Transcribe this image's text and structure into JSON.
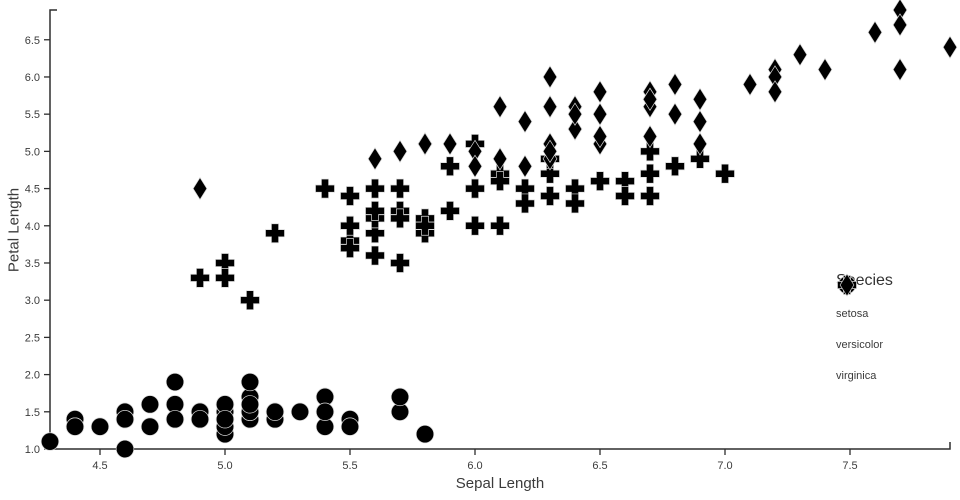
{
  "figure": {
    "background": "#ffffff",
    "marker_color": "#000000",
    "axis_color": "#2e2e2e",
    "text_color": "#3b3b3b"
  },
  "chart_data": {
    "type": "scatter",
    "title": "",
    "xlabel": "Sepal Length",
    "ylabel": "Petal Length",
    "xlim": [
      4.3,
      7.9
    ],
    "ylim": [
      1.0,
      6.9
    ],
    "x_ticks": [
      4.5,
      5.0,
      5.5,
      6.0,
      6.5,
      7.0,
      7.5
    ],
    "y_ticks": [
      1.0,
      1.5,
      2.0,
      2.5,
      3.0,
      3.5,
      4.0,
      4.5,
      5.0,
      5.5,
      6.0,
      6.5
    ],
    "grid": false,
    "legend_title": "Species",
    "legend_position": "right",
    "series": [
      {
        "name": "setosa",
        "marker": "circle",
        "color": "#000000",
        "points": [
          [
            5.1,
            1.4
          ],
          [
            4.9,
            1.4
          ],
          [
            4.7,
            1.3
          ],
          [
            4.6,
            1.5
          ],
          [
            5.0,
            1.4
          ],
          [
            5.4,
            1.7
          ],
          [
            4.6,
            1.4
          ],
          [
            5.0,
            1.5
          ],
          [
            4.4,
            1.4
          ],
          [
            4.9,
            1.5
          ],
          [
            5.4,
            1.5
          ],
          [
            4.8,
            1.6
          ],
          [
            4.8,
            1.4
          ],
          [
            4.3,
            1.1
          ],
          [
            5.8,
            1.2
          ],
          [
            5.7,
            1.5
          ],
          [
            5.4,
            1.3
          ],
          [
            5.1,
            1.4
          ],
          [
            5.7,
            1.7
          ],
          [
            5.1,
            1.5
          ],
          [
            5.4,
            1.7
          ],
          [
            5.1,
            1.5
          ],
          [
            4.6,
            1.0
          ],
          [
            5.1,
            1.7
          ],
          [
            4.8,
            1.9
          ],
          [
            5.0,
            1.6
          ],
          [
            5.0,
            1.6
          ],
          [
            5.2,
            1.5
          ],
          [
            5.2,
            1.4
          ],
          [
            4.7,
            1.6
          ],
          [
            4.8,
            1.6
          ],
          [
            5.4,
            1.5
          ],
          [
            5.2,
            1.5
          ],
          [
            5.5,
            1.4
          ],
          [
            4.9,
            1.5
          ],
          [
            5.0,
            1.2
          ],
          [
            5.5,
            1.3
          ],
          [
            4.9,
            1.4
          ],
          [
            4.4,
            1.3
          ],
          [
            5.1,
            1.5
          ],
          [
            5.0,
            1.3
          ],
          [
            4.5,
            1.3
          ],
          [
            4.4,
            1.3
          ],
          [
            5.0,
            1.6
          ],
          [
            5.1,
            1.9
          ],
          [
            4.8,
            1.4
          ],
          [
            5.1,
            1.6
          ],
          [
            4.6,
            1.4
          ],
          [
            5.3,
            1.5
          ],
          [
            5.0,
            1.4
          ]
        ]
      },
      {
        "name": "versicolor",
        "marker": "plus",
        "color": "#000000",
        "points": [
          [
            7.0,
            4.7
          ],
          [
            6.4,
            4.5
          ],
          [
            6.9,
            4.9
          ],
          [
            5.5,
            4.0
          ],
          [
            6.5,
            4.6
          ],
          [
            5.7,
            4.5
          ],
          [
            6.3,
            4.7
          ],
          [
            4.9,
            3.3
          ],
          [
            6.6,
            4.6
          ],
          [
            5.2,
            3.9
          ],
          [
            5.0,
            3.5
          ],
          [
            5.9,
            4.2
          ],
          [
            6.0,
            4.0
          ],
          [
            6.1,
            4.7
          ],
          [
            5.6,
            3.6
          ],
          [
            6.7,
            4.4
          ],
          [
            5.6,
            4.5
          ],
          [
            5.8,
            4.1
          ],
          [
            6.2,
            4.5
          ],
          [
            5.6,
            3.9
          ],
          [
            5.9,
            4.8
          ],
          [
            6.1,
            4.0
          ],
          [
            6.3,
            4.9
          ],
          [
            6.1,
            4.7
          ],
          [
            6.4,
            4.3
          ],
          [
            6.6,
            4.4
          ],
          [
            6.8,
            4.8
          ],
          [
            6.7,
            5.0
          ],
          [
            6.0,
            4.5
          ],
          [
            5.7,
            3.5
          ],
          [
            5.5,
            3.8
          ],
          [
            5.5,
            3.7
          ],
          [
            5.8,
            3.9
          ],
          [
            6.0,
            5.1
          ],
          [
            5.4,
            4.5
          ],
          [
            6.0,
            4.5
          ],
          [
            6.7,
            4.7
          ],
          [
            6.3,
            4.4
          ],
          [
            5.6,
            4.1
          ],
          [
            5.5,
            4.0
          ],
          [
            5.5,
            4.4
          ],
          [
            6.1,
            4.6
          ],
          [
            5.8,
            4.0
          ],
          [
            5.0,
            3.3
          ],
          [
            5.6,
            4.2
          ],
          [
            5.7,
            4.2
          ],
          [
            5.7,
            4.2
          ],
          [
            6.2,
            4.3
          ],
          [
            5.1,
            3.0
          ],
          [
            5.7,
            4.1
          ]
        ]
      },
      {
        "name": "virginica",
        "marker": "diamond",
        "color": "#000000",
        "points": [
          [
            6.3,
            6.0
          ],
          [
            5.8,
            5.1
          ],
          [
            7.1,
            5.9
          ],
          [
            6.3,
            5.6
          ],
          [
            6.5,
            5.8
          ],
          [
            7.6,
            6.6
          ],
          [
            4.9,
            4.5
          ],
          [
            7.3,
            6.3
          ],
          [
            6.7,
            5.8
          ],
          [
            7.2,
            6.1
          ],
          [
            6.5,
            5.1
          ],
          [
            6.4,
            5.3
          ],
          [
            6.8,
            5.5
          ],
          [
            5.7,
            5.0
          ],
          [
            5.8,
            5.1
          ],
          [
            6.4,
            5.3
          ],
          [
            6.5,
            5.5
          ],
          [
            7.7,
            6.7
          ],
          [
            7.7,
            6.9
          ],
          [
            6.0,
            5.0
          ],
          [
            6.9,
            5.7
          ],
          [
            5.6,
            4.9
          ],
          [
            7.7,
            6.7
          ],
          [
            6.3,
            4.9
          ],
          [
            6.7,
            5.7
          ],
          [
            7.2,
            6.0
          ],
          [
            6.2,
            4.8
          ],
          [
            6.1,
            4.9
          ],
          [
            6.4,
            5.6
          ],
          [
            7.2,
            5.8
          ],
          [
            7.4,
            6.1
          ],
          [
            7.9,
            6.4
          ],
          [
            6.4,
            5.6
          ],
          [
            6.3,
            5.1
          ],
          [
            6.1,
            5.6
          ],
          [
            7.7,
            6.1
          ],
          [
            6.3,
            5.6
          ],
          [
            6.4,
            5.5
          ],
          [
            6.0,
            4.8
          ],
          [
            6.9,
            5.4
          ],
          [
            6.7,
            5.6
          ],
          [
            6.9,
            5.1
          ],
          [
            5.8,
            5.1
          ],
          [
            6.8,
            5.9
          ],
          [
            6.7,
            5.7
          ],
          [
            6.7,
            5.2
          ],
          [
            6.3,
            5.0
          ],
          [
            6.5,
            5.2
          ],
          [
            6.2,
            5.4
          ],
          [
            5.9,
            5.1
          ]
        ]
      }
    ]
  }
}
